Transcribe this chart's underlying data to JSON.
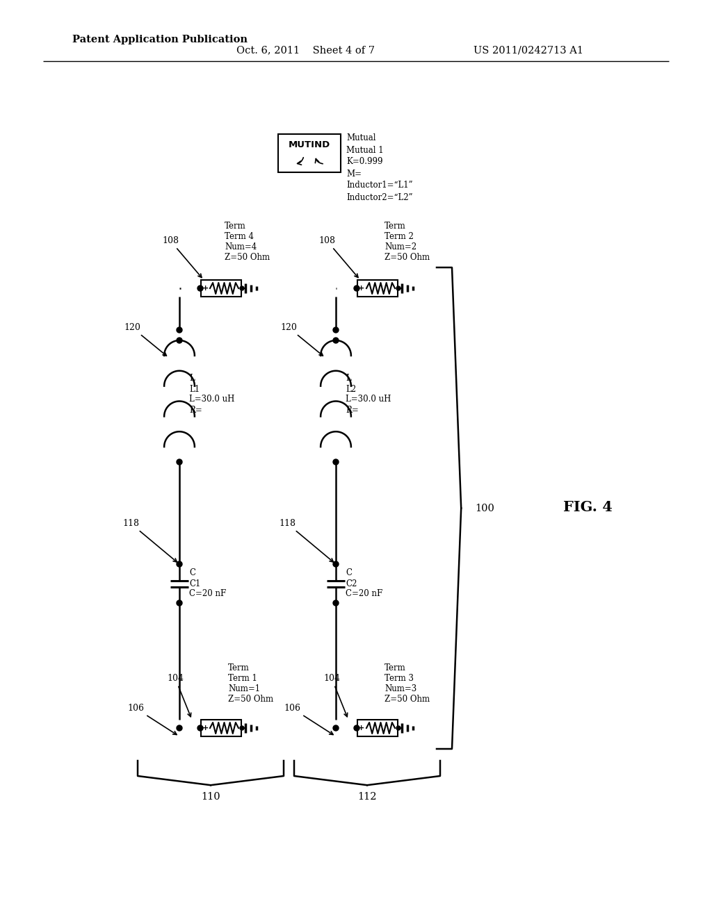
{
  "header_left": "Patent Application Publication",
  "header_center": "Oct. 6, 2011    Sheet 4 of 7",
  "header_right": "US 2011/0242713 A1",
  "fig_label": "FIG. 4",
  "bg_color": "#ffffff",
  "line_color": "#000000",
  "title_top": "Patent Application Publication",
  "title_line2": "Oct. 6, 2011   Sheet 4 of 7   US 2011/0242713 A1"
}
